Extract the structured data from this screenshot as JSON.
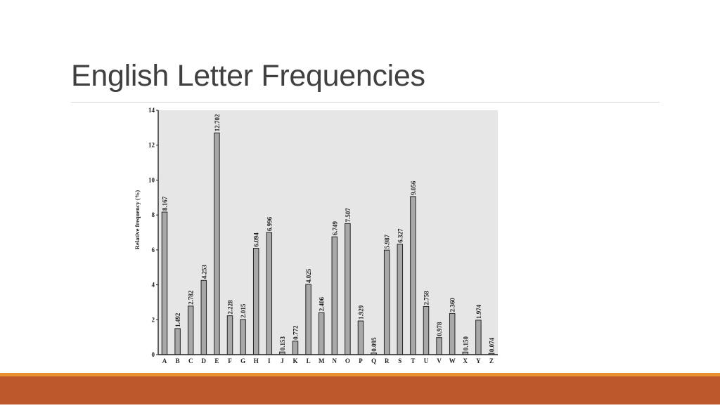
{
  "slide": {
    "title": "English Letter Frequencies"
  },
  "chart_data": {
    "type": "bar",
    "title": "",
    "xlabel": "",
    "ylabel": "Relative frequency (%)",
    "ylim": [
      0,
      14
    ],
    "yticks": [
      0,
      2,
      4,
      6,
      8,
      10,
      12,
      14
    ],
    "grid": false,
    "categories": [
      "A",
      "B",
      "C",
      "D",
      "E",
      "F",
      "G",
      "H",
      "I",
      "J",
      "K",
      "L",
      "M",
      "N",
      "O",
      "P",
      "Q",
      "R",
      "S",
      "T",
      "U",
      "V",
      "W",
      "X",
      "Y",
      "Z"
    ],
    "values": [
      8.167,
      1.492,
      2.782,
      4.253,
      12.702,
      2.228,
      2.015,
      6.094,
      6.996,
      0.153,
      0.772,
      4.025,
      2.406,
      6.749,
      7.507,
      1.929,
      0.095,
      5.987,
      6.327,
      9.056,
      2.758,
      0.978,
      2.36,
      0.15,
      1.974,
      0.074
    ],
    "labels": [
      "8.167",
      "1.492",
      "2.782",
      "4.253",
      "12.702",
      "2.228",
      "2.015",
      "6.094",
      "6.996",
      "0.153",
      "0.772",
      "4.025",
      "2.406",
      "6.749",
      "7.507",
      "1.929",
      "0.095",
      "5.987",
      "6.327",
      "9.056",
      "2.758",
      "0.978",
      "2.360",
      "0.150",
      "1.974",
      "0.074"
    ],
    "colors": {
      "bar_fill": "#a8a8a8",
      "bar_stroke": "#222222",
      "plot_background": "#e6e6e6"
    }
  }
}
